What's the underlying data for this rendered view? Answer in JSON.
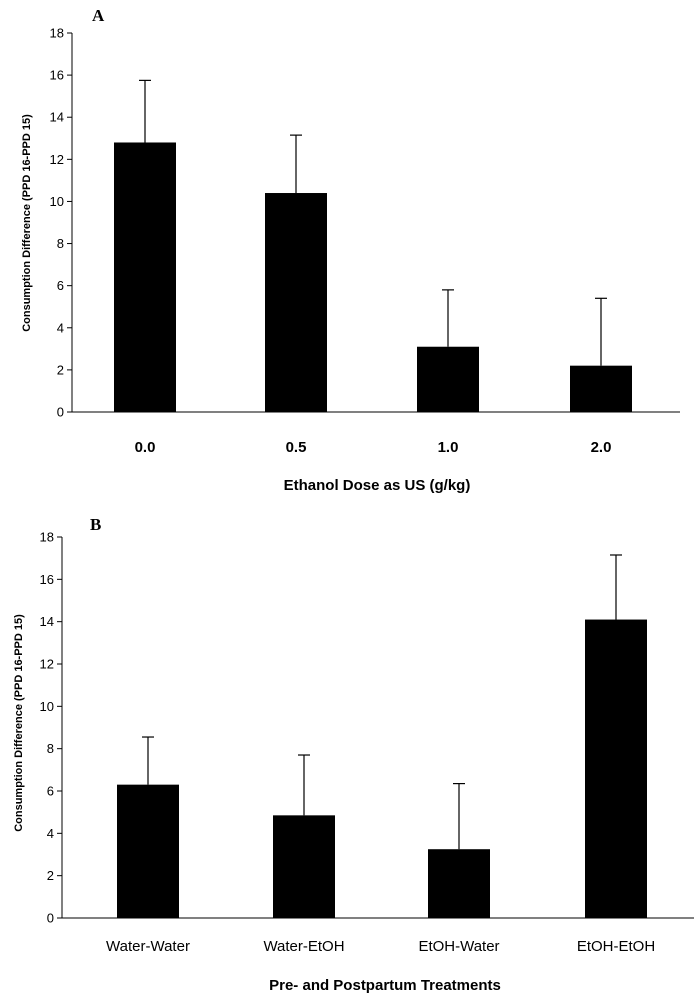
{
  "chart_data": [
    {
      "type": "bar",
      "panel_label": "A",
      "title": "",
      "categories": [
        "0.0",
        "0.5",
        "1.0",
        "2.0"
      ],
      "values": [
        12.8,
        10.4,
        3.1,
        2.2
      ],
      "error_upper": [
        15.75,
        13.15,
        5.8,
        5.4
      ],
      "xlabel": "Ethanol Dose as US (g/kg)",
      "ylabel": "Consumption Difference (PPD 16-PPD 15)",
      "ylim": [
        0,
        18
      ],
      "yticks": [
        "0",
        "2",
        "4",
        "6",
        "8",
        "10",
        "12",
        "14",
        "16",
        "18"
      ],
      "bar_color": "#000000",
      "category_style": "bold",
      "grid": false,
      "legend": "none"
    },
    {
      "type": "bar",
      "panel_label": "B",
      "title": "",
      "categories": [
        "Water-Water",
        "Water-EtOH",
        "EtOH-Water",
        "EtOH-EtOH"
      ],
      "values": [
        6.3,
        4.85,
        3.25,
        14.1
      ],
      "error_upper": [
        8.55,
        7.7,
        6.35,
        17.15
      ],
      "xlabel": "Pre- and Postpartum Treatments",
      "ylabel": "Consumption Difference (PPD 16-PPD 15)",
      "ylim": [
        0,
        18
      ],
      "yticks": [
        "0",
        "2",
        "4",
        "6",
        "8",
        "10",
        "12",
        "14",
        "16",
        "18"
      ],
      "bar_color": "#000000",
      "category_style": "plain",
      "grid": false,
      "legend": "none"
    }
  ]
}
